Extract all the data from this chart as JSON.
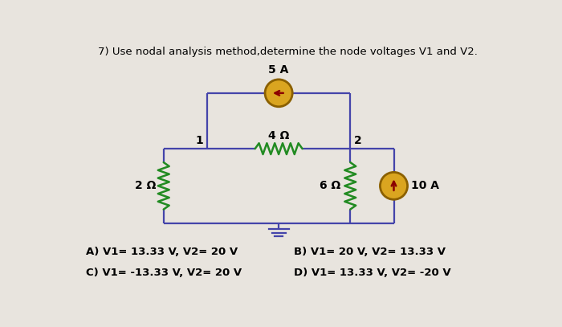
{
  "title": "7) Use nodal analysis method,determine the node voltages V1 and V2.",
  "bg_color": "#e8e4de",
  "answer_A": "A) V1= 13.33 V, V2= 20 V",
  "answer_B": "B) V1= 20 V, V2= 13.33 V",
  "answer_C": "C) V1= -13.33 V, V2= 20 V",
  "answer_D": "D) V1= 13.33 V, V2= -20 V",
  "circuit_line_color": "#4444aa",
  "resistor_color": "#228B22",
  "current_source_fill": "#DAA520",
  "current_source_edge": "#8B6000",
  "text_color": "#000000",
  "title_fontsize": 9.5,
  "label_fontsize": 10,
  "answer_fontsize": 9.5,
  "lw": 1.6
}
